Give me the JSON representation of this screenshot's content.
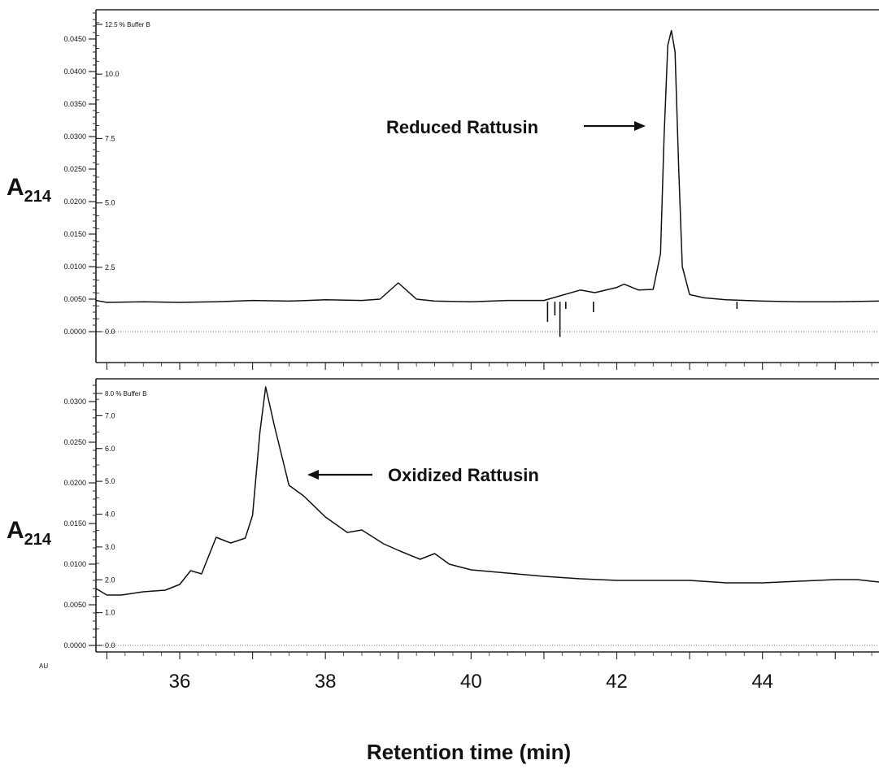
{
  "chart_data": [
    {
      "type": "line",
      "panel": "top",
      "ylabel_main": "A",
      "ylabel_sub": "214",
      "left_axis_ticks": [
        "0.0450",
        "0.0400",
        "0.0350",
        "0.0300",
        "0.0250",
        "0.0200",
        "0.0150",
        "0.0100",
        "0.0050",
        "0.0000"
      ],
      "left_axis_values": [
        0.045,
        0.04,
        0.035,
        0.03,
        0.025,
        0.02,
        0.015,
        0.01,
        0.005,
        0.0
      ],
      "ylim": [
        -0.004,
        0.0495
      ],
      "xlim": [
        34.85,
        45.6
      ],
      "buffer_label": "12.5  %  Buffer B",
      "buffer_ticks": [
        "10.0",
        "7.5",
        "5.0",
        "2.5",
        "0.0"
      ],
      "buffer_values": [
        10.0,
        7.5,
        5.0,
        2.5,
        0.0
      ],
      "buffer_scale": {
        "pct": 12.5,
        "abs": 0.0495
      },
      "annotation": "Reduced Rattusin",
      "annotation_arrow": "right",
      "peak": {
        "x": 42.75,
        "y": 0.0463
      },
      "baseline": 0.0046,
      "series": [
        {
          "x": [
            34.85,
            35.0,
            35.5,
            36.0,
            36.5,
            37.0,
            37.5,
            38.0,
            38.5,
            38.75,
            39.0,
            39.25,
            39.5,
            40.0,
            40.5,
            41.0,
            41.5,
            41.7,
            42.0,
            42.1,
            42.3,
            42.5,
            42.6,
            42.65,
            42.7,
            42.75,
            42.8,
            42.85,
            42.9,
            43.0,
            43.2,
            43.5,
            44.0,
            44.5,
            45.0,
            45.6
          ],
          "y": [
            0.0048,
            0.0045,
            0.0046,
            0.0045,
            0.0046,
            0.0048,
            0.0047,
            0.0049,
            0.0048,
            0.005,
            0.0075,
            0.005,
            0.0047,
            0.0046,
            0.0048,
            0.0048,
            0.0064,
            0.006,
            0.0068,
            0.0073,
            0.0064,
            0.0065,
            0.012,
            0.03,
            0.044,
            0.0463,
            0.043,
            0.025,
            0.01,
            0.0057,
            0.0052,
            0.0049,
            0.0047,
            0.0046,
            0.0046,
            0.0047
          ]
        }
      ],
      "dips": [
        {
          "x": 41.05,
          "y": 0.0015
        },
        {
          "x": 41.15,
          "y": 0.0025
        },
        {
          "x": 41.22,
          "y": -0.0008
        },
        {
          "x": 41.3,
          "y": 0.0035
        },
        {
          "x": 41.68,
          "y": 0.003
        },
        {
          "x": 43.65,
          "y": 0.0035
        }
      ]
    },
    {
      "type": "line",
      "panel": "bottom",
      "ylabel_main": "A",
      "ylabel_sub": "214",
      "left_axis_ticks": [
        "0.0300",
        "0.0250",
        "0.0200",
        "0.0150",
        "0.0100",
        "0.0050",
        "0.0000"
      ],
      "left_axis_values": [
        0.03,
        0.025,
        0.02,
        0.015,
        0.01,
        0.005,
        0.0
      ],
      "ylim": [
        -0.0008,
        0.0328
      ],
      "xlim": [
        34.85,
        45.6
      ],
      "buffer_label": "8.0  %  Buffer B",
      "buffer_ticks": [
        "7.0",
        "6.0",
        "5.0",
        "4.0",
        "3.0",
        "2.0",
        "1.0",
        "0.0"
      ],
      "buffer_values": [
        7.0,
        6.0,
        5.0,
        4.0,
        3.0,
        2.0,
        1.0,
        0.0
      ],
      "buffer_scale": {
        "pct": 8.0,
        "abs": 0.0323
      },
      "annotation": "Oxidized Rattusin",
      "annotation_arrow": "left",
      "peak": {
        "x": 37.18,
        "y": 0.0318
      },
      "xticks": [
        36,
        38,
        40,
        42,
        44
      ],
      "au_label": "AU",
      "xlabel": "Retention time (min)",
      "series": [
        {
          "x": [
            34.85,
            35.0,
            35.2,
            35.5,
            35.8,
            36.0,
            36.15,
            36.3,
            36.5,
            36.7,
            36.9,
            37.0,
            37.1,
            37.18,
            37.3,
            37.5,
            37.7,
            38.0,
            38.3,
            38.5,
            38.8,
            39.0,
            39.3,
            39.5,
            39.7,
            40.0,
            40.5,
            41.0,
            41.5,
            42.0,
            42.5,
            43.0,
            43.5,
            44.0,
            44.5,
            45.0,
            45.3,
            45.6
          ],
          "y": [
            0.007,
            0.0062,
            0.0062,
            0.0066,
            0.0068,
            0.0075,
            0.0092,
            0.0088,
            0.0133,
            0.0126,
            0.0132,
            0.016,
            0.0262,
            0.0318,
            0.027,
            0.0197,
            0.0184,
            0.0158,
            0.0139,
            0.0142,
            0.0125,
            0.0117,
            0.0106,
            0.0113,
            0.01,
            0.0093,
            0.0089,
            0.0085,
            0.0082,
            0.008,
            0.008,
            0.008,
            0.0077,
            0.0077,
            0.0079,
            0.0081,
            0.0081,
            0.0078
          ]
        }
      ]
    }
  ]
}
